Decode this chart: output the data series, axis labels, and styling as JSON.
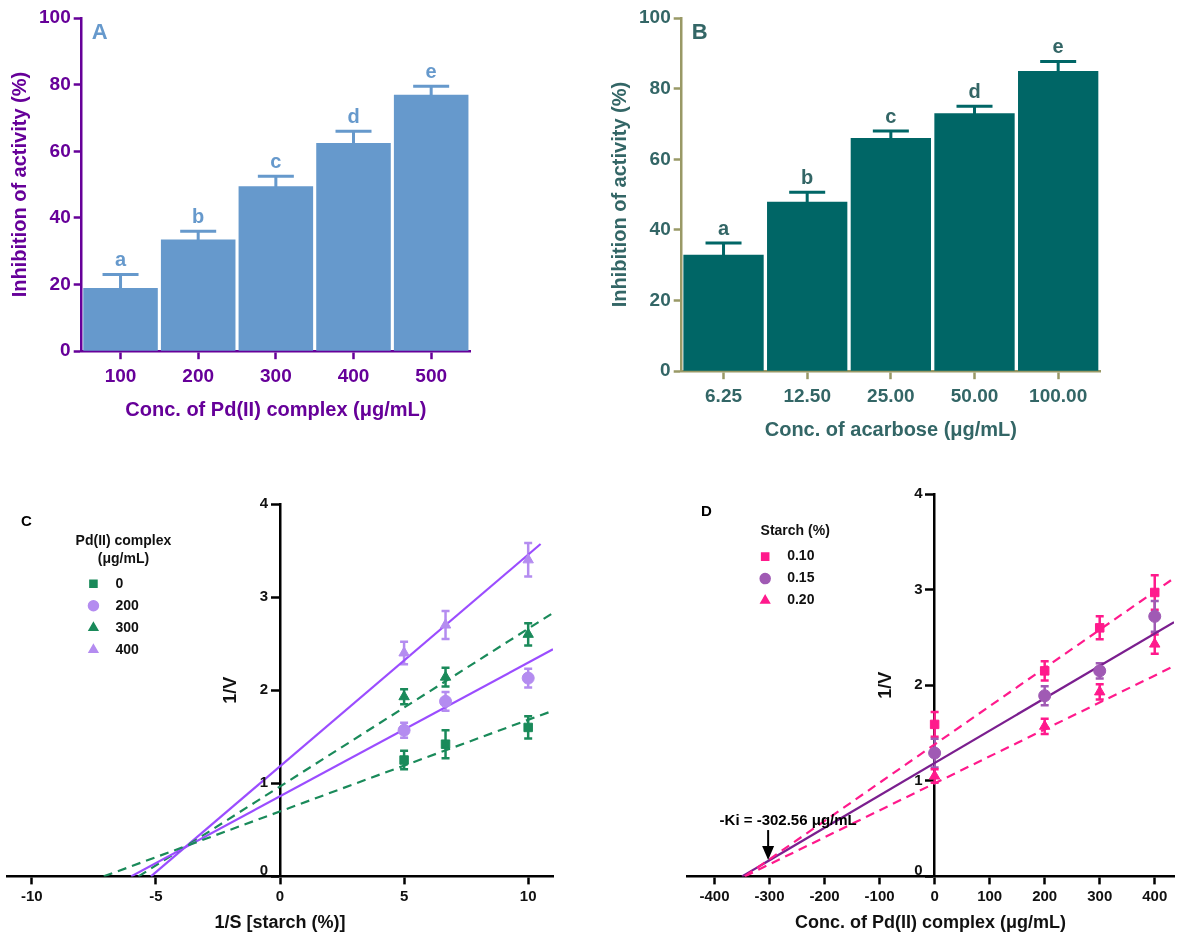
{
  "chart_data": [
    {
      "type": "bar",
      "title": "A",
      "xlabel": "Conc. of Pd(II) complex (μg/mL)",
      "ylabel": "Inhibition of activity (%)",
      "categories": [
        "100",
        "200",
        "300",
        "400",
        "500"
      ],
      "values": [
        19,
        33.5,
        49.5,
        62.5,
        77
      ],
      "errors": [
        4,
        2.5,
        3,
        3.5,
        2.5
      ],
      "color": "#6699cc",
      "ylim": [
        0,
        100
      ],
      "yticks": [
        0,
        20,
        40,
        60,
        80,
        100
      ],
      "grid": false,
      "legend": false,
      "annotations": [
        {
          "text": "a",
          "x": "100",
          "y": 23
        },
        {
          "text": "b",
          "x": "200",
          "y": 36
        },
        {
          "text": "c",
          "x": "300",
          "y": 52.5
        },
        {
          "text": "d",
          "x": "400",
          "y": 66
        },
        {
          "text": "e",
          "x": "500",
          "y": 79.5
        }
      ]
    },
    {
      "type": "bar",
      "title": "B",
      "xlabel": "Conc. of acarbose (μg/mL)",
      "ylabel": "Inhibition of activity (%)",
      "categories": [
        "6.25",
        "12.50",
        "25.00",
        "50.00",
        "100.00"
      ],
      "values": [
        33,
        48,
        66,
        73,
        85
      ],
      "errors": [
        3.3,
        2.7,
        2,
        2,
        2.7
      ],
      "color": "#006666",
      "ylim": [
        0,
        100
      ],
      "yticks": [
        0,
        20,
        40,
        60,
        80,
        100
      ],
      "grid": false,
      "legend": false,
      "annotations": [
        {
          "text": "a",
          "x": "6.25",
          "y": 36.3
        },
        {
          "text": "b",
          "x": "12.50",
          "y": 50.7
        },
        {
          "text": "c",
          "x": "25.00",
          "y": 68
        },
        {
          "text": "d",
          "x": "50.00",
          "y": 75
        },
        {
          "text": "e",
          "x": "100.00",
          "y": 87.7
        }
      ]
    },
    {
      "type": "scatter",
      "title": "C",
      "xlabel": "1/S [starch (%)]",
      "ylabel": "1/V",
      "legend_title": "Pd(II) complex (μg/mL)",
      "legend": "top left",
      "grid": false,
      "xlim": [
        -11,
        11
      ],
      "xticks": [
        -10,
        -5,
        0,
        5,
        10
      ],
      "ylim": [
        0,
        4
      ],
      "yticks": [
        0,
        1,
        2,
        3,
        4
      ],
      "series": [
        {
          "name": "0",
          "color": "#1a8a5a",
          "marker": "square",
          "x": [
            5,
            6.67,
            10
          ],
          "values": [
            1.25,
            1.42,
            1.6
          ],
          "errors": [
            0.1,
            0.15,
            0.12
          ]
        },
        {
          "name": "200",
          "color": "#b48cf0",
          "marker": "circle",
          "x": [
            5,
            6.67,
            10
          ],
          "values": [
            1.57,
            1.88,
            2.13
          ],
          "errors": [
            0.08,
            0.1,
            0.1
          ]
        },
        {
          "name": "300",
          "color": "#1a8a5a",
          "marker": "triangle",
          "x": [
            5,
            6.67,
            10
          ],
          "values": [
            1.93,
            2.14,
            2.6
          ],
          "errors": [
            0.08,
            0.1,
            0.12
          ]
        },
        {
          "name": "400",
          "color": "#b48cf0",
          "marker": "triangle",
          "x": [
            5,
            6.67,
            10
          ],
          "values": [
            2.4,
            2.7,
            3.4
          ],
          "errors": [
            0.12,
            0.15,
            0.18
          ]
        },
        {
          "type": "line",
          "color": "#1a8a5a",
          "line_style": "dashed",
          "x": [
            -7.1,
            11
          ],
          "values": [
            0,
            1.78
          ]
        },
        {
          "type": "line",
          "color": "#9b4dff",
          "line_style": "solid",
          "x": [
            -6,
            11
          ],
          "values": [
            0,
            2.44
          ]
        },
        {
          "type": "line",
          "color": "#1a8a5a",
          "line_style": "dashed",
          "x": [
            -5.7,
            11
          ],
          "values": [
            0,
            2.83
          ]
        },
        {
          "type": "line",
          "color": "#9b4dff",
          "line_style": "solid",
          "x": [
            -5.2,
            10.5
          ],
          "values": [
            0,
            3.57
          ]
        }
      ]
    },
    {
      "type": "scatter",
      "title": "D",
      "xlabel": "Conc. of Pd(II) complex (μg/mL)",
      "ylabel": "1/V",
      "legend_title": "Starch (%)",
      "legend": "top left",
      "grid": false,
      "xlim": [
        -450,
        435
      ],
      "xticks": [
        -400,
        -300,
        -200,
        -100,
        0,
        100,
        200,
        300,
        400
      ],
      "ylim": [
        0,
        4
      ],
      "yticks": [
        0,
        1,
        2,
        3,
        4
      ],
      "annotations": [
        {
          "text": "-Ki = -302.56 μg/mL",
          "x": -302.56,
          "y": 0.15
        }
      ],
      "series": [
        {
          "name": "0.10",
          "color": "#ff1a8c",
          "marker": "square",
          "x": [
            0,
            200,
            300,
            400
          ],
          "values": [
            1.59,
            2.15,
            2.6,
            2.97
          ],
          "errors": [
            0.13,
            0.1,
            0.12,
            0.18
          ]
        },
        {
          "name": "0.15",
          "color": "#a05ab4",
          "marker": "circle",
          "x": [
            0,
            200,
            300,
            400
          ],
          "values": [
            1.29,
            1.89,
            2.15,
            2.72
          ],
          "errors": [
            0.15,
            0.1,
            0.08,
            0.16
          ]
        },
        {
          "name": "0.20",
          "color": "#ff1a8c",
          "marker": "triangle",
          "x": [
            0,
            200,
            300,
            400
          ],
          "values": [
            1.05,
            1.57,
            1.93,
            2.43
          ],
          "errors": [
            0.07,
            0.08,
            0.08,
            0.1
          ]
        },
        {
          "type": "line",
          "color": "#ff1a8c",
          "line_style": "dashed",
          "x": [
            -345,
            435
          ],
          "values": [
            0,
            3.12
          ]
        },
        {
          "type": "line",
          "color": "#7b1f8f",
          "line_style": "solid",
          "x": [
            -350,
            435
          ],
          "values": [
            0,
            2.66
          ]
        },
        {
          "type": "line",
          "color": "#ff1a8c",
          "line_style": "dashed",
          "x": [
            -345,
            435
          ],
          "values": [
            0,
            2.2
          ]
        }
      ]
    }
  ]
}
